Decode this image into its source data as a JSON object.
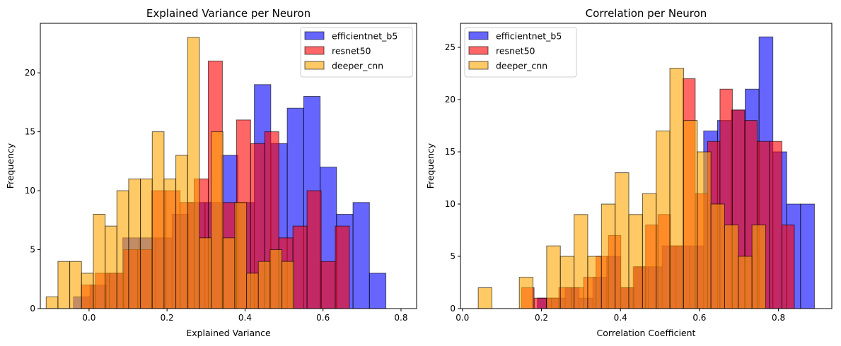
{
  "chart_data": [
    {
      "type": "histogram",
      "title": "Explained Variance per Neuron",
      "xlabel": "Explained Variance",
      "ylabel": "Frequency",
      "xlim": [
        -0.125,
        0.84
      ],
      "ylim": [
        0,
        24.2
      ],
      "xticks": [
        0.0,
        0.2,
        0.4,
        0.6,
        0.8
      ],
      "xtick_labels": [
        "0.0",
        "0.2",
        "0.4",
        "0.6",
        "0.8"
      ],
      "yticks": [
        0,
        5,
        10,
        15,
        20
      ],
      "ytick_labels": [
        "0",
        "5",
        "10",
        "15",
        "20"
      ],
      "legend": "top-right",
      "series": [
        {
          "name": "efficientnet_b5",
          "color": "#0000ff",
          "opacity": 0.6,
          "bin_start": -0.04,
          "bin_width": 0.04217,
          "counts": [
            1,
            2,
            3,
            6,
            6,
            6,
            8,
            9,
            9,
            13,
            9,
            19,
            14,
            17,
            18,
            12,
            8,
            9,
            3
          ]
        },
        {
          "name": "resnet50",
          "color": "#ff0000",
          "opacity": 0.6,
          "bin_start": -0.02,
          "bin_width": 0.03619,
          "counts": [
            2,
            3,
            3,
            5,
            5,
            10,
            10,
            9,
            11,
            21,
            9,
            16,
            14,
            15,
            6,
            7,
            10,
            4,
            7
          ]
        },
        {
          "name": "deeper_cnn",
          "color": "#ffa500",
          "opacity": 0.6,
          "bin_start": -0.11,
          "bin_width": 0.03023,
          "counts": [
            1,
            4,
            4,
            3,
            8,
            7,
            10,
            11,
            11,
            15,
            11,
            13,
            23,
            6,
            15,
            6,
            9,
            3,
            4,
            5,
            4
          ]
        }
      ]
    },
    {
      "type": "histogram",
      "title": "Correlation per Neuron",
      "xlabel": "Correlation Coefficient",
      "ylabel": "Frequency",
      "xlim": [
        -0.005,
        0.935
      ],
      "ylim": [
        0,
        27.3
      ],
      "xticks": [
        0.0,
        0.2,
        0.4,
        0.6,
        0.8
      ],
      "xtick_labels": [
        "0.0",
        "0.2",
        "0.4",
        "0.6",
        "0.8"
      ],
      "yticks": [
        0,
        5,
        10,
        15,
        20,
        25
      ],
      "ytick_labels": [
        "0",
        "5",
        "10",
        "15",
        "20",
        "25"
      ],
      "legend": "top-left",
      "series": [
        {
          "name": "efficientnet_b5",
          "color": "#0000ff",
          "opacity": 0.6,
          "bin_start": 0.19,
          "bin_width": 0.03505,
          "counts": [
            1,
            1,
            2,
            1,
            3,
            5,
            2,
            4,
            4,
            6,
            6,
            6,
            17,
            18,
            19,
            21,
            26,
            15,
            10,
            10
          ]
        },
        {
          "name": "resnet50",
          "color": "#ff0000",
          "opacity": 0.6,
          "bin_start": 0.15,
          "bin_width": 0.03137,
          "counts": [
            2,
            1,
            1,
            2,
            2,
            3,
            5,
            7,
            2,
            4,
            8,
            9,
            6,
            22,
            11,
            16,
            21,
            19,
            18,
            16,
            16,
            8
          ]
        },
        {
          "name": "deeper_cnn",
          "color": "#ffa500",
          "opacity": 0.6,
          "bin_start": 0.04,
          "bin_width": 0.03465,
          "counts": [
            2,
            0,
            0,
            3,
            0,
            6,
            5,
            9,
            5,
            10,
            13,
            9,
            11,
            17,
            23,
            18,
            15,
            10,
            8,
            5,
            8
          ]
        }
      ]
    }
  ]
}
